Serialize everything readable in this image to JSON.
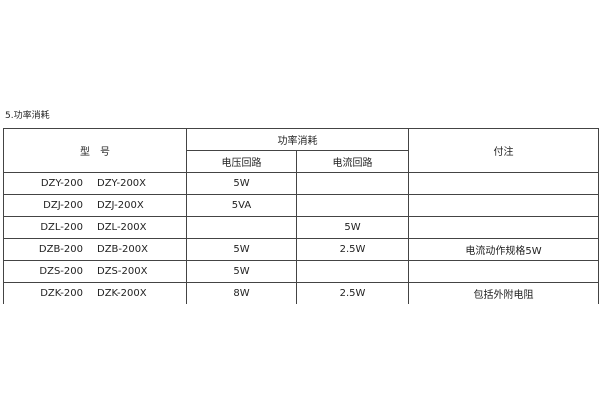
{
  "title": "5.功率消耗",
  "headers": {
    "model": "型　号",
    "power": "功率消耗",
    "voltage": "电压回路",
    "current": "电流回路",
    "note": "付注"
  },
  "rows": [
    {
      "model_a": "DZY-200",
      "model_b": "DZY-200X",
      "voltage": "5W",
      "current": "",
      "note": ""
    },
    {
      "model_a": "DZJ-200",
      "model_b": "DZJ-200X",
      "voltage": "5VA",
      "current": "",
      "note": ""
    },
    {
      "model_a": "DZL-200",
      "model_b": "DZL-200X",
      "voltage": "",
      "current": "5W",
      "note": ""
    },
    {
      "model_a": "DZB-200",
      "model_b": "DZB-200X",
      "voltage": "5W",
      "current": "2.5W",
      "note": "电流动作规格5W"
    },
    {
      "model_a": "DZS-200",
      "model_b": "DZS-200X",
      "voltage": "5W",
      "current": "",
      "note": ""
    },
    {
      "model_a": "DZK-200",
      "model_b": "DZK-200X",
      "voltage": "8W",
      "current": "2.5W",
      "note": "包括外附电阻"
    }
  ]
}
